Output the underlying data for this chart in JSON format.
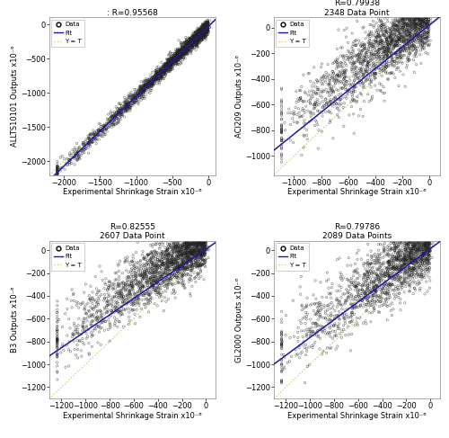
{
  "subplots": [
    {
      "title": ": R=0.95568",
      "ylabel": "ALLTS10101 Outputs x10⁻⁶",
      "xlabel": "Experimental Shrinkage Strain x10⁻⁶",
      "xlim": [
        -2200,
        100
      ],
      "ylim": [
        -2200,
        100
      ],
      "xticks": [
        -2000,
        -1500,
        -1000,
        -500,
        0
      ],
      "yticks": [
        -2000,
        -1500,
        -1000,
        -500,
        0
      ],
      "n_points": 2500,
      "R": 0.95568,
      "seed": 42,
      "fit_slope": 1.02,
      "fit_intercept": -30,
      "scatter_bias": 0
    },
    {
      "title": "R=0.79938\n2348 Data Point",
      "ylabel": "ACI209 Outputs x10⁻⁶",
      "xlabel": "Experimental Shrinkage Strain x10⁻⁶",
      "xlim": [
        -1150,
        80
      ],
      "ylim": [
        -1150,
        80
      ],
      "xticks": [
        -1000,
        -800,
        -600,
        -400,
        -200,
        0
      ],
      "yticks": [
        -1000,
        -800,
        -600,
        -400,
        -200,
        0
      ],
      "n_points": 2348,
      "R": 0.79938,
      "seed": 43,
      "fit_slope": 0.85,
      "fit_intercept": 20,
      "scatter_bias": 120
    },
    {
      "title": "R=0.82555\n2607 Data Point",
      "ylabel": "B3 Outputs x10⁻⁶",
      "xlabel": "Experimental Shrinkage Strain x10⁻⁶",
      "xlim": [
        -1300,
        80
      ],
      "ylim": [
        -1300,
        80
      ],
      "xticks": [
        -1200,
        -1000,
        -800,
        -600,
        -400,
        -200,
        0
      ],
      "yticks": [
        -1200,
        -1000,
        -800,
        -600,
        -400,
        -200,
        0
      ],
      "n_points": 2607,
      "R": 0.82555,
      "seed": 44,
      "fit_slope": 0.72,
      "fit_intercept": 10,
      "scatter_bias": 100
    },
    {
      "title": "R=0.79786\n2089 Data Points",
      "ylabel": "GL2000 Outputs x10⁻⁶",
      "xlabel": "Experimental Shrinkage Strain x10⁻⁶",
      "xlim": [
        -1300,
        80
      ],
      "ylim": [
        -1300,
        80
      ],
      "xticks": [
        -1200,
        -1000,
        -800,
        -600,
        -400,
        -200,
        0
      ],
      "yticks": [
        -1200,
        -1000,
        -800,
        -600,
        -400,
        -200,
        0
      ],
      "n_points": 2089,
      "R": 0.79786,
      "seed": 45,
      "fit_slope": 0.78,
      "fit_intercept": 15,
      "scatter_bias": 80
    }
  ],
  "fit_color": "#1a1aaa",
  "identity_color": "#c8c864",
  "scatter_edgecolor": "#222222",
  "bg_color": "#ffffff",
  "fig_bg_color": "#ffffff",
  "font_size": 6,
  "title_font_size": 6.5,
  "label_font_size": 6
}
